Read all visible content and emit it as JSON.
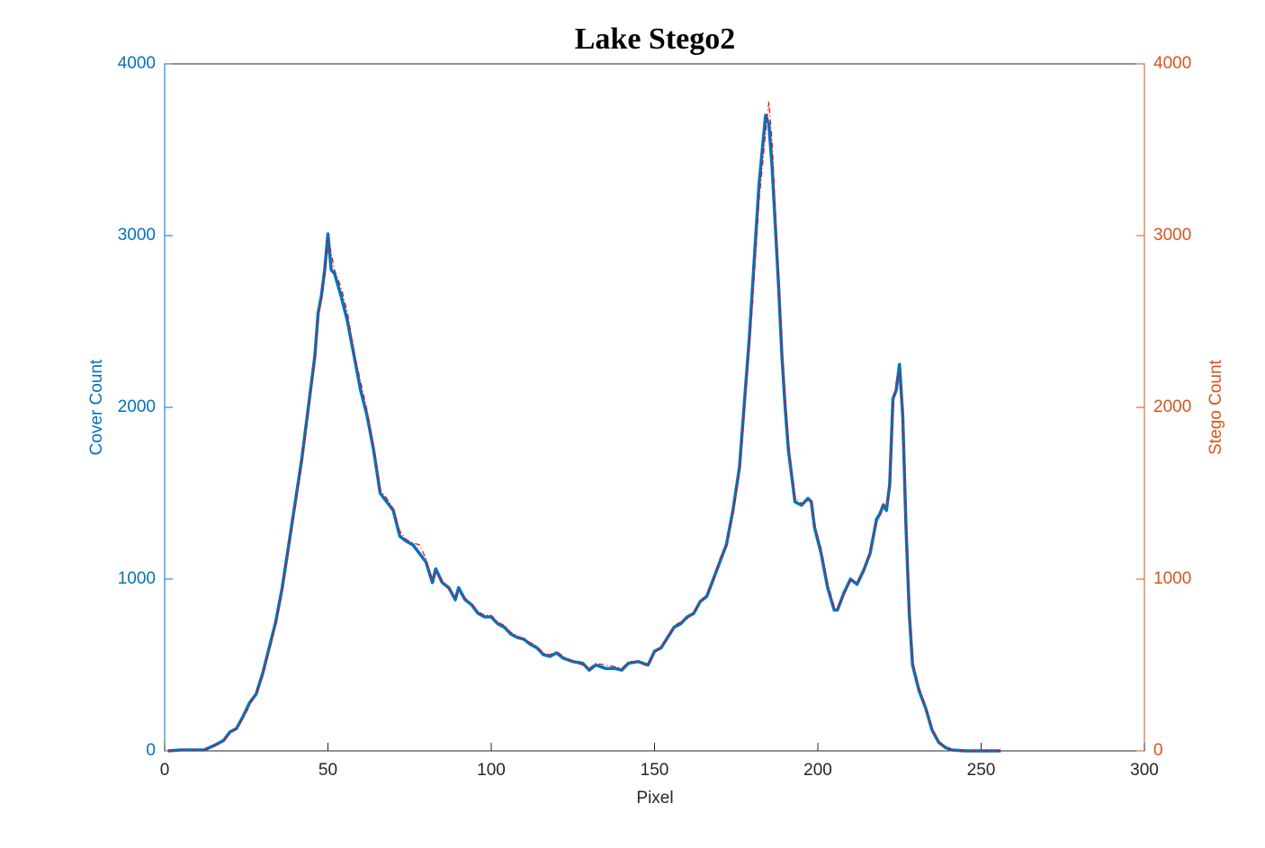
{
  "chart_data": {
    "type": "line",
    "title": "Lake Stego2",
    "xlabel": "Pixel",
    "ylabel": "Cover Count",
    "y2label": "Stego Count",
    "x": [
      1,
      5,
      10,
      12,
      15,
      18,
      20,
      22,
      24,
      26,
      28,
      30,
      32,
      34,
      36,
      38,
      40,
      42,
      44,
      46,
      47,
      48,
      49,
      50,
      51,
      52,
      54,
      56,
      58,
      60,
      62,
      64,
      66,
      68,
      70,
      72,
      74,
      76,
      78,
      80,
      82,
      83,
      85,
      87,
      89,
      90,
      92,
      94,
      96,
      98,
      100,
      102,
      104,
      106,
      108,
      110,
      112,
      114,
      116,
      118,
      120,
      122,
      125,
      128,
      130,
      132,
      135,
      138,
      140,
      142,
      145,
      148,
      150,
      152,
      154,
      156,
      158,
      160,
      162,
      164,
      166,
      168,
      170,
      172,
      174,
      176,
      177,
      178,
      179,
      180,
      181,
      182,
      183,
      184,
      185,
      186,
      187,
      188,
      189,
      190,
      191,
      192,
      193,
      195,
      197,
      198,
      199,
      201,
      203,
      205,
      206,
      208,
      210,
      212,
      214,
      216,
      218,
      219,
      220,
      221,
      222,
      223,
      224,
      225,
      226,
      227,
      228,
      229,
      231,
      233,
      235,
      237,
      239,
      241,
      245,
      256
    ],
    "series": [
      {
        "name": "Cover Count",
        "color": "#0072bd",
        "values": [
          0,
          5,
          5,
          5,
          30,
          60,
          110,
          130,
          200,
          280,
          330,
          450,
          600,
          750,
          950,
          1200,
          1450,
          1700,
          2000,
          2300,
          2550,
          2650,
          2800,
          3010,
          2800,
          2780,
          2650,
          2500,
          2300,
          2100,
          1950,
          1750,
          1500,
          1450,
          1400,
          1250,
          1220,
          1200,
          1150,
          1100,
          980,
          1060,
          980,
          950,
          880,
          950,
          880,
          850,
          800,
          780,
          780,
          740,
          720,
          680,
          660,
          650,
          620,
          600,
          560,
          550,
          570,
          540,
          520,
          510,
          470,
          500,
          480,
          480,
          470,
          510,
          520,
          500,
          580,
          600,
          660,
          720,
          740,
          780,
          800,
          870,
          900,
          1000,
          1100,
          1200,
          1400,
          1650,
          1900,
          2150,
          2400,
          2700,
          3000,
          3300,
          3500,
          3700,
          3650,
          3400,
          3050,
          2700,
          2300,
          2000,
          1750,
          1600,
          1450,
          1430,
          1470,
          1450,
          1300,
          1150,
          950,
          820,
          820,
          920,
          1000,
          970,
          1050,
          1150,
          1350,
          1380,
          1430,
          1400,
          1550,
          2050,
          2100,
          2250,
          1950,
          1300,
          800,
          500,
          350,
          250,
          120,
          50,
          20,
          5,
          0,
          0
        ]
      },
      {
        "name": "Stego Count",
        "color": "#ff0000",
        "axis": "y2",
        "values": [
          0,
          5,
          5,
          5,
          25,
          55,
          100,
          130,
          190,
          260,
          340,
          430,
          580,
          730,
          930,
          1180,
          1420,
          1680,
          1980,
          2280,
          2520,
          2620,
          2780,
          2980,
          2900,
          2800,
          2700,
          2550,
          2320,
          2150,
          1980,
          1770,
          1520,
          1470,
          1410,
          1280,
          1230,
          1210,
          1200,
          1120,
          990,
          1040,
          990,
          940,
          900,
          920,
          890,
          860,
          810,
          790,
          790,
          750,
          730,
          690,
          670,
          650,
          630,
          610,
          570,
          560,
          580,
          550,
          520,
          500,
          480,
          510,
          500,
          490,
          480,
          520,
          520,
          490,
          570,
          610,
          650,
          730,
          750,
          770,
          810,
          860,
          910,
          990,
          1120,
          1190,
          1380,
          1620,
          1850,
          2100,
          2350,
          2600,
          2900,
          3200,
          3400,
          3600,
          3780,
          3550,
          3150,
          2750,
          2350,
          2050,
          1800,
          1620,
          1480,
          1440,
          1460,
          1460,
          1320,
          1180,
          980,
          840,
          830,
          910,
          990,
          980,
          1040,
          1160,
          1330,
          1360,
          1440,
          1420,
          1520,
          2000,
          2150,
          2200,
          2000,
          1350,
          850,
          530,
          370,
          260,
          130,
          55,
          20,
          5,
          0,
          0
        ]
      }
    ],
    "xlim": [
      0,
      300
    ],
    "xticks": [
      0,
      50,
      100,
      150,
      200,
      250,
      300
    ],
    "ylim": [
      0,
      4000
    ],
    "yticks": [
      0,
      1000,
      2000,
      3000,
      4000
    ],
    "ycolor": "#0072bd",
    "y2lim": [
      0,
      4000
    ],
    "y2ticks": [
      0,
      1000,
      2000,
      3000,
      4000
    ],
    "y2color": "#d95319"
  }
}
